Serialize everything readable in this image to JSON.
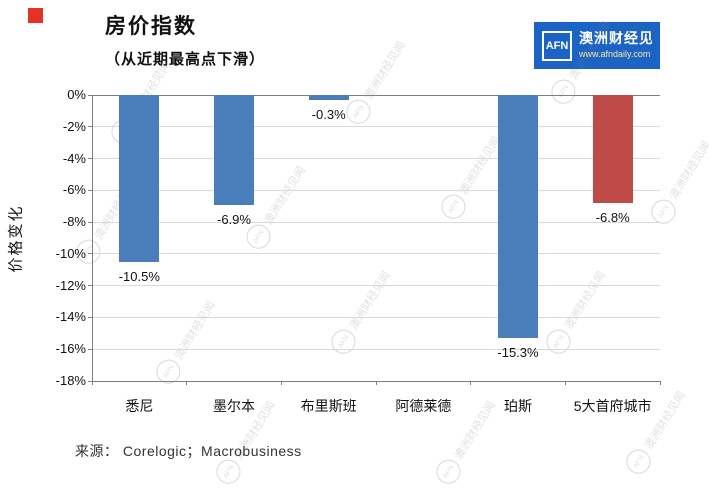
{
  "page": {
    "title": "房价指数",
    "subtitle": "（从近期最高点下滑）",
    "source": "来源： Corelogic；Macrobusiness",
    "watermark_text": "澳洲财经见闻",
    "logo": {
      "abbr": "AFN",
      "name": "澳洲财经见闻",
      "url": "www.afndaily.com"
    }
  },
  "chart_data": {
    "type": "bar",
    "title": "房价指数（从近期最高点下滑）",
    "ylabel": "价格变化",
    "xlabel": "",
    "categories": [
      "悉尼",
      "墨尔本",
      "布里斯班",
      "阿德莱德",
      "珀斯",
      "5大首府城市"
    ],
    "values": [
      -10.5,
      -6.9,
      -0.3,
      0,
      -15.3,
      -6.8
    ],
    "data_labels": [
      "-10.5%",
      "-6.9%",
      "-0.3%",
      "",
      "-15.3%",
      "-6.8%"
    ],
    "bar_colors": [
      "#4a7ebb",
      "#4a7ebb",
      "#4a7ebb",
      "#4a7ebb",
      "#4a7ebb",
      "#bf4a47"
    ],
    "ylim": [
      -18,
      0
    ],
    "ytick_step": -2,
    "ytick_labels": [
      "0%",
      "-2%",
      "-4%",
      "-6%",
      "-8%",
      "-10%",
      "-12%",
      "-14%",
      "-16%",
      "-18%"
    ],
    "grid": true,
    "legend": "none"
  }
}
